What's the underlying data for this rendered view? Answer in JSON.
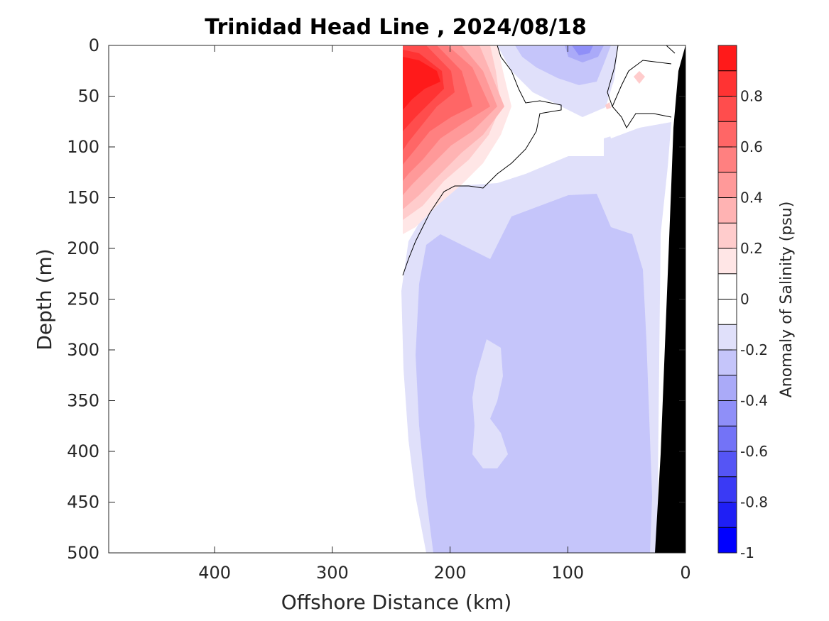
{
  "chart_data": {
    "type": "heatmap",
    "title": "Trinidad Head Line , 2024/08/18",
    "xlabel": "Offshore Distance (km)",
    "ylabel": "Depth (m)",
    "xlim": [
      490,
      0
    ],
    "ylim": [
      0,
      500
    ],
    "x_reversed": true,
    "y_reversed": true,
    "x_ticks": [
      400,
      300,
      200,
      100,
      0
    ],
    "y_ticks": [
      0,
      50,
      100,
      150,
      200,
      250,
      300,
      350,
      400,
      450,
      500
    ],
    "grid": false,
    "colorbar": {
      "label": "Anomaly of Salinity (psu)",
      "range": [
        -1,
        1
      ],
      "ticks": [
        0.8,
        0.6,
        0.4,
        0.2,
        0,
        -0.2,
        -0.4,
        -0.6,
        -0.8,
        -1
      ],
      "tick_labels": [
        "0.8",
        "0.6",
        "0.4",
        "0.2",
        "0",
        "-0.2",
        "-0.4",
        "-0.6",
        "-0.8",
        "-1"
      ],
      "levels": [
        {
          "from": 0.9,
          "to": 1.0,
          "color": "#ff1a1a"
        },
        {
          "from": 0.8,
          "to": 0.9,
          "color": "#ff3333"
        },
        {
          "from": 0.7,
          "to": 0.8,
          "color": "#ff4d4d"
        },
        {
          "from": 0.6,
          "to": 0.7,
          "color": "#ff6666"
        },
        {
          "from": 0.5,
          "to": 0.6,
          "color": "#ff8080"
        },
        {
          "from": 0.4,
          "to": 0.5,
          "color": "#ff9999"
        },
        {
          "from": 0.3,
          "to": 0.4,
          "color": "#ffb3b3"
        },
        {
          "from": 0.2,
          "to": 0.3,
          "color": "#ffcccc"
        },
        {
          "from": 0.1,
          "to": 0.2,
          "color": "#ffe6e6"
        },
        {
          "from": 0.0,
          "to": 0.1,
          "color": "#ffffff"
        },
        {
          "from": -0.1,
          "to": 0.0,
          "color": "#ffffff"
        },
        {
          "from": -0.2,
          "to": -0.1,
          "color": "#e0e0fa"
        },
        {
          "from": -0.3,
          "to": -0.2,
          "color": "#c5c5fa"
        },
        {
          "from": -0.4,
          "to": -0.3,
          "color": "#aaaaf8"
        },
        {
          "from": -0.5,
          "to": -0.4,
          "color": "#8f8ff8"
        },
        {
          "from": -0.6,
          "to": -0.5,
          "color": "#7373f7"
        },
        {
          "from": -0.7,
          "to": -0.6,
          "color": "#5555f5"
        },
        {
          "from": -0.8,
          "to": -0.7,
          "color": "#3a3af5"
        },
        {
          "from": -0.9,
          "to": -0.8,
          "color": "#1f1ff5"
        },
        {
          "from": -1.0,
          "to": -0.9,
          "color": "#0000ff"
        }
      ]
    },
    "data_extent_km": [
      0,
      240
    ],
    "data_extent_depth_m": [
      0,
      500
    ],
    "regions": [
      {
        "label": "near-surface positive anomaly core",
        "x_range_km": [
          150,
          240
        ],
        "depth_range_m": [
          0,
          210
        ],
        "max_value": 0.9
      },
      {
        "label": "subsurface negative anomaly body",
        "x_range_km": [
          25,
          240
        ],
        "depth_range_m": [
          150,
          500
        ],
        "value": -0.25
      },
      {
        "label": "surface negative patch",
        "x_range_km": [
          60,
          160
        ],
        "depth_range_m": [
          0,
          50
        ],
        "min_value": -0.45
      }
    ],
    "bathymetry_color": "#000000"
  }
}
